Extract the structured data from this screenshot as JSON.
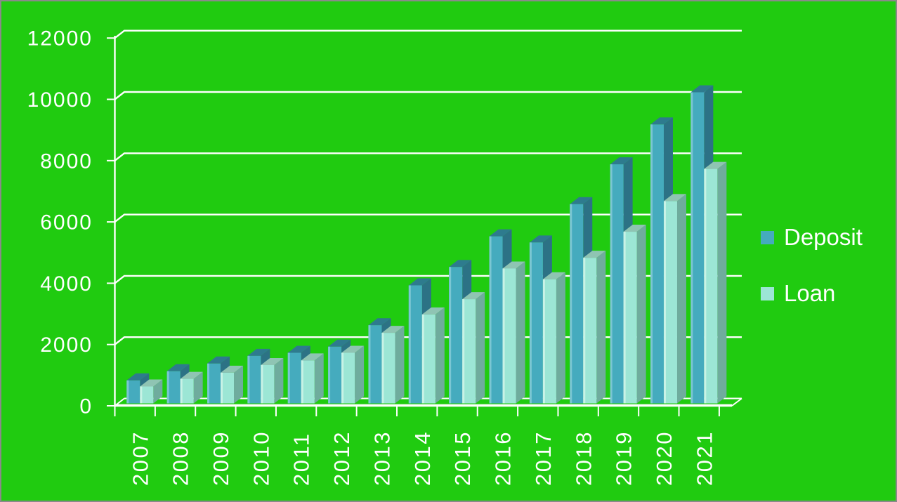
{
  "chart_data": {
    "type": "bar",
    "style": "3d-columns",
    "title": "",
    "xlabel": "",
    "ylabel": "",
    "categories": [
      "2007",
      "2008",
      "2009",
      "2010",
      "2011",
      "2012",
      "2013",
      "2014",
      "2015",
      "2016",
      "2017",
      "2018",
      "2019",
      "2020",
      "2021"
    ],
    "series": [
      {
        "name": "Deposit",
        "values": [
          750,
          1050,
          1300,
          1550,
          1650,
          1850,
          2550,
          3850,
          4450,
          5450,
          5250,
          6500,
          7800,
          9100,
          10150
        ]
      },
      {
        "name": "Loan",
        "values": [
          550,
          800,
          1000,
          1250,
          1400,
          1650,
          2300,
          2900,
          3400,
          4400,
          4050,
          4750,
          5600,
          6600,
          7650
        ]
      }
    ],
    "ylim": [
      0,
      12000
    ],
    "yticks": [
      0,
      2000,
      4000,
      6000,
      8000,
      10000,
      12000
    ],
    "grid": true,
    "legend_position": "right",
    "colors": {
      "background": "#20CB10",
      "grid": "#FFFFFF",
      "text": "#FFFFFF",
      "deposit": {
        "front": "#45ABBE",
        "top": "#2E7B8E",
        "side": "#2C7285",
        "edge": "#7BC6D3"
      },
      "loan": {
        "front": "#9CE6D5",
        "top": "#8FC4B3",
        "side": "#6FAC9D",
        "edge": "#C8F2E6"
      }
    }
  },
  "page": {
    "border_color": "#8A8A8A"
  }
}
